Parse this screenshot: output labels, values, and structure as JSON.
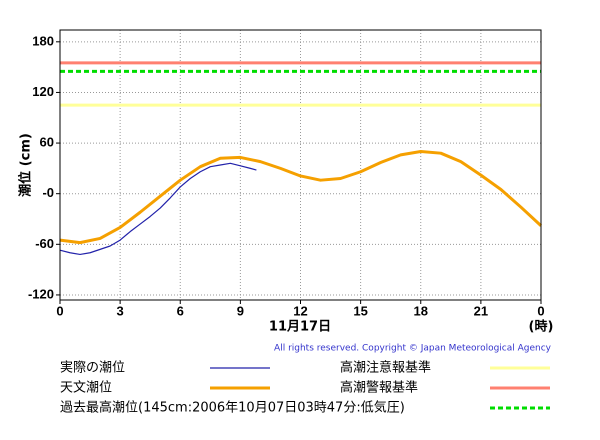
{
  "chart_data": {
    "type": "line",
    "ylabel": "潮位 (cm)",
    "xlabel": "11月17日",
    "xunit": "(時)",
    "copyright": "All rights reserved. Copyright © Japan Meteorological Agency",
    "xlim": [
      0,
      24
    ],
    "xticks": [
      0,
      3,
      6,
      9,
      12,
      15,
      18,
      21,
      {
        "value": 24,
        "label": "0"
      }
    ],
    "ylim": [
      -126,
      194
    ],
    "yticks": [
      -120,
      -60,
      {
        "value": 0,
        "label": "-0"
      },
      60,
      120,
      180
    ],
    "grid": true,
    "series": [
      {
        "name": "実際の潮位",
        "color": "#2222aa",
        "x": [
          0,
          0.5,
          1,
          1.5,
          2,
          2.5,
          3,
          3.5,
          4,
          4.5,
          5,
          5.5,
          6,
          6.5,
          7,
          7.5,
          8,
          8.5,
          9,
          9.5,
          9.8
        ],
        "values": [
          -67,
          -70,
          -72,
          -70,
          -66,
          -62,
          -55,
          -45,
          -36,
          -27,
          -17,
          -5,
          8,
          18,
          26,
          32,
          34,
          36,
          33,
          30,
          28
        ]
      },
      {
        "name": "天文潮位",
        "color": "#f5a000",
        "x": [
          0,
          1,
          2,
          3,
          4,
          5,
          6,
          7,
          8,
          9,
          10,
          11,
          12,
          13,
          14,
          15,
          16,
          17,
          18,
          19,
          20,
          21,
          22,
          23,
          24
        ],
        "values": [
          -55,
          -58,
          -53,
          -40,
          -22,
          -3,
          16,
          32,
          42,
          43,
          38,
          30,
          21,
          16,
          18,
          26,
          37,
          46,
          50,
          48,
          38,
          22,
          5,
          -16,
          -38
        ]
      }
    ],
    "reference_lines": [
      {
        "name": "高潮注意報基準",
        "value": 105,
        "color": "#ffff99",
        "dashed": false
      },
      {
        "name": "高潮警報基準",
        "value": 155,
        "color": "#ff8070",
        "dashed": false
      },
      {
        "name": "過去最高潮位(145cm:2006年10月07日03時47分:低気圧)",
        "value": 145,
        "color": "#00dd00",
        "dashed": true
      }
    ]
  }
}
